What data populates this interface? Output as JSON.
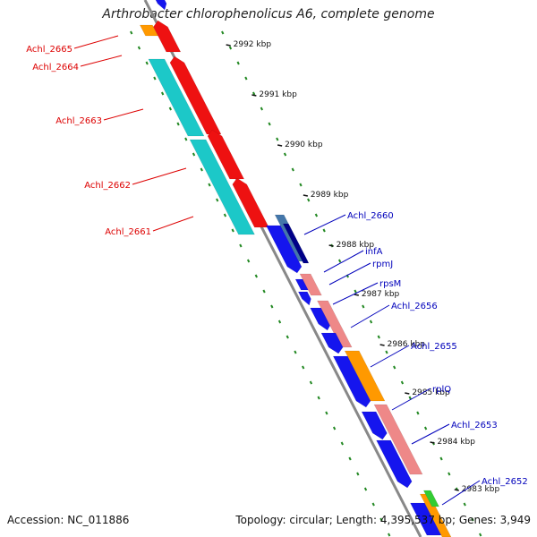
{
  "title": "Arthrobacter chlorophenolicus A6, complete genome",
  "footer": {
    "accession": "Accession: NC_011886",
    "topology": "Topology: circular; Length: 4,395,537 bp; Genes: 3,949"
  },
  "ticks": [
    "2992 kbp",
    "2991 kbp",
    "2990 kbp",
    "2989 kbp",
    "2988 kbp",
    "2987 kbp",
    "2986 kbp",
    "2985 kbp",
    "2984 kbp",
    "2983 kbp"
  ],
  "left_genes": [
    "Achl_2665",
    "Achl_2664",
    "Achl_2663",
    "Achl_2662",
    "Achl_2661"
  ],
  "right_genes": [
    "Achl_2660",
    "infA",
    "rpmJ",
    "rpsM",
    "Achl_2656",
    "Achl_2655",
    "rplQ",
    "Achl_2653",
    "Achl_2652"
  ],
  "colors": {
    "left_label": "#dd0000",
    "right_label": "#0000bb",
    "backbone": "#888888",
    "tick_dots": "#228822",
    "cyan": "#1cc8c8",
    "red": "#ee1111",
    "blue": "#1515ee",
    "steelblue": "#4477aa",
    "navy": "#000088",
    "salmon": "#ee8888",
    "orange": "#ff9900",
    "green": "#33cc33"
  }
}
